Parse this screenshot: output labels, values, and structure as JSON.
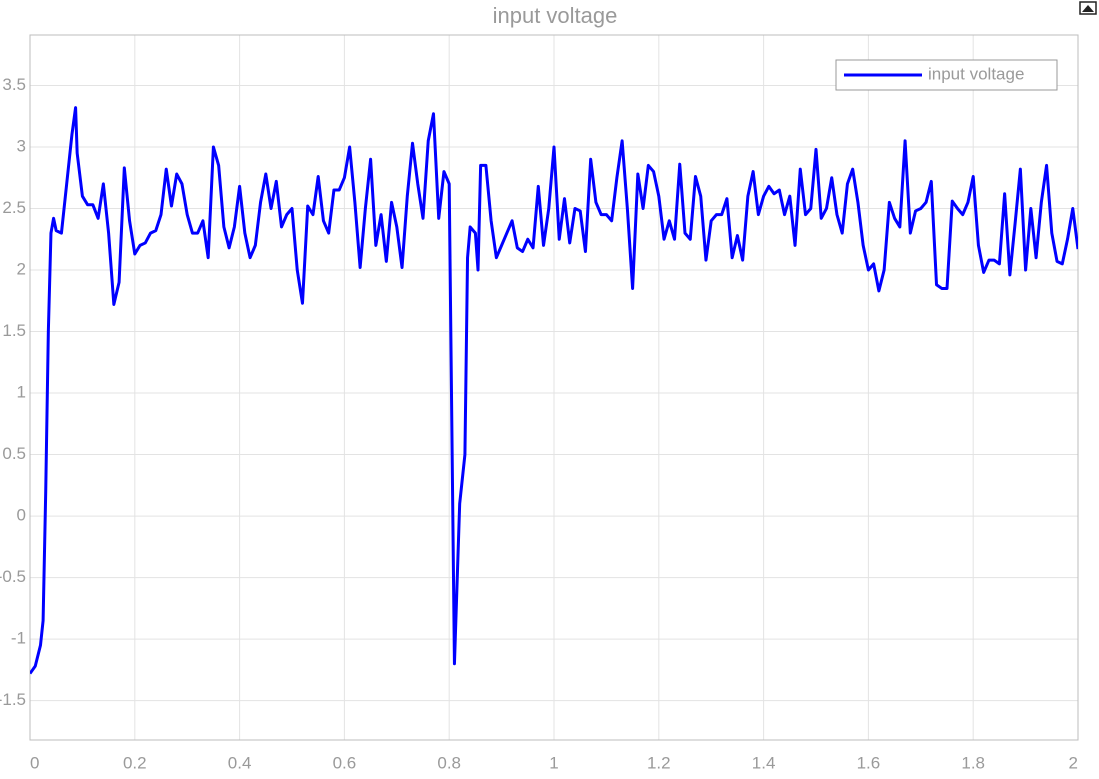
{
  "chart_data": {
    "type": "line",
    "title": "input voltage",
    "x": [
      0,
      0.01,
      0.02,
      0.025,
      0.03,
      0.035,
      0.04,
      0.045,
      0.05,
      0.06,
      0.07,
      0.08,
      0.087,
      0.09,
      0.1,
      0.11,
      0.12,
      0.13,
      0.14,
      0.15,
      0.16,
      0.17,
      0.18,
      0.19,
      0.2,
      0.21,
      0.22,
      0.23,
      0.24,
      0.25,
      0.26,
      0.27,
      0.28,
      0.29,
      0.3,
      0.31,
      0.32,
      0.33,
      0.34,
      0.35,
      0.36,
      0.37,
      0.38,
      0.39,
      0.4,
      0.41,
      0.42,
      0.43,
      0.44,
      0.45,
      0.46,
      0.47,
      0.48,
      0.49,
      0.5,
      0.51,
      0.52,
      0.53,
      0.54,
      0.55,
      0.56,
      0.57,
      0.58,
      0.59,
      0.6,
      0.61,
      0.62,
      0.63,
      0.64,
      0.65,
      0.66,
      0.67,
      0.68,
      0.69,
      0.7,
      0.71,
      0.72,
      0.73,
      0.74,
      0.75,
      0.76,
      0.77,
      0.78,
      0.79,
      0.8,
      0.81,
      0.82,
      0.83,
      0.835,
      0.84,
      0.85,
      0.855,
      0.86,
      0.87,
      0.88,
      0.89,
      0.9,
      0.91,
      0.92,
      0.93,
      0.94,
      0.95,
      0.96,
      0.97,
      0.98,
      0.99,
      1,
      1.01,
      1.02,
      1.03,
      1.04,
      1.05,
      1.06,
      1.07,
      1.08,
      1.09,
      1.1,
      1.11,
      1.12,
      1.13,
      1.14,
      1.15,
      1.16,
      1.17,
      1.18,
      1.19,
      1.2,
      1.21,
      1.22,
      1.23,
      1.24,
      1.25,
      1.26,
      1.27,
      1.28,
      1.29,
      1.3,
      1.31,
      1.32,
      1.33,
      1.34,
      1.35,
      1.36,
      1.37,
      1.38,
      1.39,
      1.4,
      1.41,
      1.42,
      1.43,
      1.44,
      1.45,
      1.46,
      1.47,
      1.48,
      1.49,
      1.5,
      1.51,
      1.52,
      1.53,
      1.54,
      1.55,
      1.56,
      1.57,
      1.58,
      1.59,
      1.6,
      1.61,
      1.62,
      1.63,
      1.64,
      1.65,
      1.66,
      1.67,
      1.68,
      1.69,
      1.7,
      1.71,
      1.72,
      1.73,
      1.74,
      1.75,
      1.76,
      1.77,
      1.78,
      1.79,
      1.8,
      1.81,
      1.82,
      1.83,
      1.84,
      1.85,
      1.86,
      1.87,
      1.88,
      1.89,
      1.9,
      1.91,
      1.92,
      1.93,
      1.94,
      1.95,
      1.96,
      1.97,
      1.98,
      1.99,
      2
    ],
    "series": [
      {
        "name": "input voltage",
        "color": "#0000ff",
        "values": [
          -1.28,
          -1.22,
          -1.05,
          -0.85,
          0.2,
          1.5,
          2.3,
          2.42,
          2.32,
          2.3,
          2.7,
          3.1,
          3.32,
          2.95,
          2.6,
          2.53,
          2.53,
          2.42,
          2.7,
          2.3,
          1.72,
          1.9,
          2.83,
          2.4,
          2.13,
          2.2,
          2.22,
          2.3,
          2.32,
          2.45,
          2.82,
          2.52,
          2.78,
          2.7,
          2.45,
          2.3,
          2.3,
          2.4,
          2.1,
          3.0,
          2.85,
          2.35,
          2.18,
          2.35,
          2.68,
          2.3,
          2.1,
          2.2,
          2.55,
          2.78,
          2.5,
          2.72,
          2.35,
          2.45,
          2.5,
          2.0,
          1.73,
          2.52,
          2.45,
          2.76,
          2.4,
          2.3,
          2.65,
          2.65,
          2.75,
          3.0,
          2.55,
          2.02,
          2.5,
          2.9,
          2.2,
          2.45,
          2.07,
          2.55,
          2.35,
          2.02,
          2.6,
          3.03,
          2.7,
          2.42,
          3.05,
          3.27,
          2.42,
          2.8,
          2.7,
          -1.2,
          0.1,
          0.5,
          2.1,
          2.35,
          2.3,
          2.0,
          2.85,
          2.85,
          2.4,
          2.1,
          2.2,
          2.3,
          2.4,
          2.18,
          2.15,
          2.25,
          2.18,
          2.68,
          2.2,
          2.5,
          3.0,
          2.25,
          2.58,
          2.22,
          2.5,
          2.48,
          2.15,
          2.9,
          2.55,
          2.45,
          2.45,
          2.4,
          2.75,
          3.05,
          2.5,
          1.85,
          2.78,
          2.5,
          2.85,
          2.8,
          2.6,
          2.25,
          2.4,
          2.25,
          2.86,
          2.3,
          2.25,
          2.76,
          2.6,
          2.08,
          2.4,
          2.45,
          2.45,
          2.58,
          2.1,
          2.28,
          2.08,
          2.6,
          2.8,
          2.45,
          2.6,
          2.68,
          2.62,
          2.65,
          2.45,
          2.6,
          2.2,
          2.82,
          2.45,
          2.5,
          2.98,
          2.42,
          2.5,
          2.75,
          2.45,
          2.3,
          2.7,
          2.82,
          2.55,
          2.2,
          2.0,
          2.05,
          1.83,
          2.0,
          2.55,
          2.42,
          2.35,
          3.05,
          2.3,
          2.48,
          2.5,
          2.55,
          2.72,
          1.88,
          1.85,
          1.85,
          2.56,
          2.5,
          2.45,
          2.55,
          2.76,
          2.2,
          1.98,
          2.08,
          2.08,
          2.05,
          2.62,
          1.96,
          2.38,
          2.82,
          2.0,
          2.5,
          2.1,
          2.55,
          2.85,
          2.3,
          2.07,
          2.05,
          2.25,
          2.5,
          2.17
        ]
      }
    ],
    "xlim": [
      0,
      2
    ],
    "xticks": [
      0,
      0.2,
      0.4,
      0.6,
      0.8,
      1,
      1.2,
      1.4,
      1.6,
      1.8,
      2
    ],
    "ylim": [
      -1.82,
      3.91
    ],
    "yticks": [
      -1.5,
      -1,
      -0.5,
      0,
      0.5,
      1,
      1.5,
      2,
      2.5,
      3,
      3.5
    ],
    "grid": true,
    "legend": "northeast"
  }
}
